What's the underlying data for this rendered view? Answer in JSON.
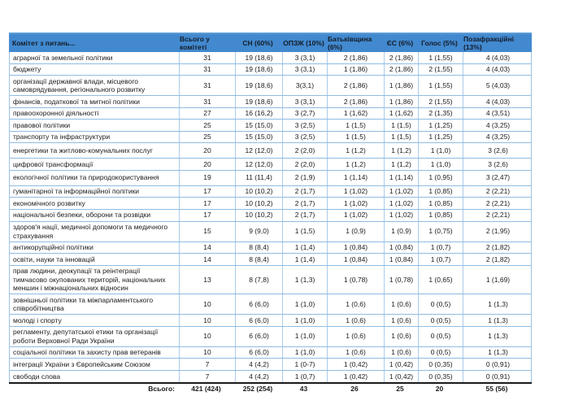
{
  "colors": {
    "header_bg": "#4289cf",
    "header_top_border": "#5b9bd5",
    "grid_border": "#9dc3e6",
    "total_divider": "#1a1a1a"
  },
  "table": {
    "header": {
      "committee": "Комітет з питань...",
      "total": "Всього у комітеті",
      "sn": "СН (60%)",
      "opzzh": "ОПЗЖ (10%)",
      "batkivshchyna": "Батьківщина (6%)",
      "es": "ЄС (6%)",
      "holos": "Голос (5%)",
      "pozafraktsiini": "Позафракційні (13%)"
    },
    "rows": [
      [
        "аграрної та земельної політики",
        "31",
        "19 (18,6)",
        "3 (3,1)",
        "2 (1,86)",
        "2 (1,86)",
        "1 (1,55)",
        "4 (4,03)"
      ],
      [
        "бюджету",
        "31",
        "19 (18,6)",
        "3 (3,1)",
        "1 (1,86)",
        "2 (1,86)",
        "2 (1,55)",
        "4 (4,03)"
      ],
      [
        "організації державної влади, місцевого самоврядування, регіонального розвитку",
        "31",
        "19 (18,6)",
        "3(3,1)",
        "2 (1,86)",
        "1 (1,86)",
        "1 (1,55)",
        "5 (4,03)"
      ],
      [
        "фінансів, податкової та митної політики",
        "31",
        "19 (18,6)",
        "3 (3,1)",
        "2 (1,86)",
        "1 (1,86)",
        "2 (1,55)",
        "4 (4,03)"
      ],
      [
        "правоохоронної діяльності",
        "27",
        "16 (16,2)",
        "3 (2,7)",
        "1 (1,62)",
        "1 (1,62)",
        "2 (1,35)",
        "4 (3,51)"
      ],
      [
        "правової політики",
        "25",
        "15 (15,0)",
        "3 (2,5)",
        "1 (1,5)",
        "1 (1,5)",
        "1 (1,25)",
        "4 (3,25)"
      ],
      [
        "транспорту та інфраструктури",
        "25",
        "15 (15,0)",
        "3 (2,5)",
        "1 (1,5)",
        "1 (1,5)",
        "1 (1,25)",
        "4 (3,25)"
      ],
      [
        "енергетики та житлово-комунальних послуг",
        "20",
        "12 (12,0)",
        "2 (2,0)",
        "1 (1,2)",
        "1 (1,2)",
        "1 (1,0)",
        "3 (2,6)"
      ],
      [
        "цифрової трансформації",
        "20",
        "12 (12,0)",
        "2 (2,0)",
        "1 (1,2)",
        "1 (1,2)",
        "1 (1,0)",
        "3 (2,6)"
      ],
      [
        "екологічної політики та природокористування",
        "19",
        "11 (11,4)",
        "2 (1,9)",
        "1 (1,14)",
        "1 (1,14)",
        "1 (0,95)",
        "3 (2,47)"
      ],
      [
        "гуманітарної та інформаційної політики",
        "17",
        "10 (10,2)",
        "2 (1,7)",
        "1 (1,02)",
        "1 (1,02)",
        "1 (0,85)",
        "2 (2,21)"
      ],
      [
        "економічного розвитку",
        "17",
        "10 (10,2)",
        "2 (1,7)",
        "1 (1,02)",
        "1 (1,02)",
        "1 (0,85)",
        "2 (2,21)"
      ],
      [
        "національної безпеки, оборони та розвідки",
        "17",
        "10 (10,2)",
        "2 (1,7)",
        "1 (1,02)",
        "1 (1,02)",
        "1 (0,85)",
        "2 (2,21)"
      ],
      [
        "здоров'я нації, медичної допомоги та медичного страхування",
        "15",
        "9 (9,0)",
        "1 (1,5)",
        "1 (0,9)",
        "1 (0,9)",
        "1 (0,75)",
        "2 (1,95)"
      ],
      [
        "антикорупційної політики",
        "14",
        "8 (8,4)",
        "1 (1,4)",
        "1 (0,84)",
        "1 (0,84)",
        "1 (0,7)",
        "2 (1,82)"
      ],
      [
        "освіти, науки та інновацій",
        "14",
        "8 (8,4)",
        "1 (1,4)",
        "1 (0,84)",
        "1 (0,84)",
        "1 (0,7)",
        "2 (1,82)"
      ],
      [
        "прав людини, деокупації та реінтеграції тимчасово окупованих територій, національних меншин і міжнаціональних відносин",
        "13",
        "8 (7,8)",
        "1 (1,3)",
        "1 (0,78)",
        "1 (0,78)",
        "1 (0,65)",
        "1 (1,69)"
      ],
      [
        "зовнішньої політики та міжпарламентського співробітництва",
        "10",
        "6 (6,0)",
        "1 (1,0)",
        "1 (0,6)",
        "1 (0,6)",
        "0 (0,5)",
        "1 (1,3)"
      ],
      [
        "молоді і спорту",
        "10",
        "6 (6,0)",
        "1 (1,0)",
        "1 (0,6)",
        "1 (0,6)",
        "0 (0,5)",
        "1 (1,3)"
      ],
      [
        "регламенту, депутатської етики та організації роботи Верховної Ради України",
        "10",
        "6 (6,0)",
        "1 (1,0)",
        "1 (0,6)",
        "1 (0,6)",
        "0 (0,5)",
        "1 (1,3)"
      ],
      [
        "соціальної політики та захисту прав ветеранів",
        "10",
        "6 (6,0)",
        "1 (1,0)",
        "1 (0,6)",
        "1 (0,6)",
        "0 (0,5)",
        "1 (1,3)"
      ],
      [
        "інтеграції України з Європейським Союзом",
        "7",
        "4 (4,2)",
        "1 (0-7)",
        "1 (0,42)",
        "1 (0,42)",
        "0 (0,35)",
        "0 (0,91)"
      ],
      [
        "свободи слова",
        "7",
        "4 (4,2)",
        "1 (0,7)",
        "1 (0,42)",
        "1 (0,42)",
        "0 (0,35)",
        "0 (0,91)"
      ]
    ],
    "total_row": [
      "Всього:",
      "421 (424)",
      "252 (254)",
      "43",
      "26",
      "25",
      "20",
      "55 (56)"
    ]
  }
}
